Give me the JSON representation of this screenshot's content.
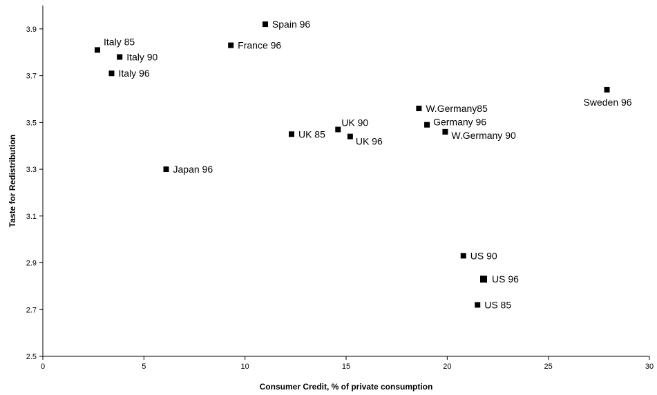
{
  "chart_data": {
    "type": "scatter",
    "title": "",
    "xlabel": "Consumer Credit, % of private consumption",
    "ylabel": "Taste for Redistribution",
    "xlim": [
      0,
      30
    ],
    "ylim": [
      2.5,
      4.0
    ],
    "x_ticks": [
      "0",
      "5",
      "10",
      "15",
      "20",
      "25",
      "30"
    ],
    "y_ticks": [
      "2.5",
      "2.7",
      "2.9",
      "3.1",
      "3.3",
      "3.5",
      "3.7",
      "3.9"
    ],
    "grid": false,
    "legend": "none",
    "marker_color": "#000000",
    "points": [
      {
        "label": "Spain 96",
        "x": 11.0,
        "y": 3.92
      },
      {
        "label": "France 96",
        "x": 9.3,
        "y": 3.83
      },
      {
        "label": "Italy 85",
        "x": 2.7,
        "y": 3.81
      },
      {
        "label": "Italy 90",
        "x": 3.8,
        "y": 3.78
      },
      {
        "label": "Italy 96",
        "x": 3.4,
        "y": 3.71
      },
      {
        "label": "Sweden 96",
        "x": 27.9,
        "y": 3.64
      },
      {
        "label": "W.Germany85",
        "x": 18.6,
        "y": 3.56
      },
      {
        "label": "Germany 96",
        "x": 19.0,
        "y": 3.49
      },
      {
        "label": "W.Germany 90",
        "x": 19.9,
        "y": 3.46
      },
      {
        "label": "UK 90",
        "x": 14.6,
        "y": 3.47
      },
      {
        "label": "UK 85",
        "x": 12.3,
        "y": 3.45
      },
      {
        "label": "UK 96",
        "x": 15.2,
        "y": 3.44
      },
      {
        "label": "Japan 96",
        "x": 6.1,
        "y": 3.3
      },
      {
        "label": "US 90",
        "x": 20.8,
        "y": 2.93
      },
      {
        "label": "US 96",
        "x": 21.8,
        "y": 2.83
      },
      {
        "label": "US 85",
        "x": 21.5,
        "y": 2.72
      }
    ]
  }
}
